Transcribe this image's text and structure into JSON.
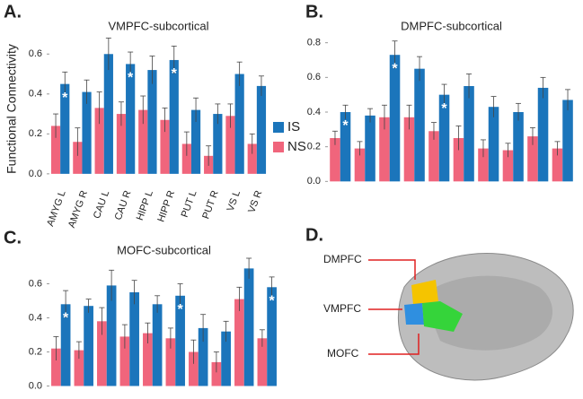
{
  "chart_data": [
    {
      "type": "bar",
      "panel": "A.",
      "title": "VMPFC-subcortical",
      "y_label": "Functional Connectivity",
      "categories": [
        "AMYG L",
        "AMYG R",
        "CAU L",
        "CAU R",
        "HIPP L",
        "HIPP R",
        "PUT L",
        "PUT R",
        "VS L",
        "VS R"
      ],
      "series": [
        {
          "name": "NS",
          "color": "#f0657c",
          "values": [
            0.24,
            0.16,
            0.33,
            0.3,
            0.32,
            0.27,
            0.15,
            0.09,
            0.29,
            0.15
          ],
          "errors": [
            0.06,
            0.07,
            0.08,
            0.06,
            0.07,
            0.06,
            0.06,
            0.05,
            0.06,
            0.05
          ]
        },
        {
          "name": "IS",
          "color": "#1b75bb",
          "values": [
            0.45,
            0.41,
            0.6,
            0.55,
            0.52,
            0.57,
            0.32,
            0.3,
            0.5,
            0.44
          ],
          "errors": [
            0.06,
            0.06,
            0.08,
            0.06,
            0.07,
            0.07,
            0.06,
            0.05,
            0.06,
            0.05
          ]
        }
      ],
      "annotations": [
        {
          "text": "*",
          "category": 0
        },
        {
          "text": "*",
          "category": 3
        },
        {
          "text": "*",
          "category": 5
        }
      ],
      "ylim": [
        -0.05,
        0.7
      ],
      "yticks": [
        {
          "value": 0,
          "label": "0.0"
        },
        0.2,
        0.4,
        0.6
      ],
      "legend": "right"
    },
    {
      "type": "bar",
      "panel": "B.",
      "title": "DMPFC-subcortical",
      "categories": [
        null,
        null,
        null,
        null,
        null,
        null,
        null,
        null,
        null,
        null
      ],
      "series": [
        {
          "name": "NS",
          "color": "#f0657c",
          "values": [
            0.25,
            0.19,
            0.37,
            0.37,
            0.29,
            0.25,
            0.19,
            0.18,
            0.26,
            0.19
          ],
          "errors": [
            0.04,
            0.04,
            0.07,
            0.07,
            0.05,
            0.07,
            0.05,
            0.04,
            0.05,
            0.04
          ]
        },
        {
          "name": "IS",
          "color": "#1b75bb",
          "values": [
            0.4,
            0.38,
            0.73,
            0.65,
            0.5,
            0.55,
            0.43,
            0.4,
            0.54,
            0.47
          ],
          "errors": [
            0.04,
            0.04,
            0.08,
            0.07,
            0.06,
            0.07,
            0.06,
            0.05,
            0.06,
            0.06
          ]
        }
      ],
      "annotations": [
        {
          "text": "*",
          "category": 0
        },
        {
          "text": "*",
          "category": 2
        },
        {
          "text": "*",
          "category": 4
        }
      ],
      "ylim": [
        -0.05,
        0.85
      ],
      "yticks": [
        {
          "value": 0,
          "label": "0.0"
        },
        0.2,
        0.4,
        0.6,
        0.8
      ]
    },
    {
      "type": "bar",
      "panel": "C.",
      "title": "MOFC-subcortical",
      "categories": [
        null,
        null,
        null,
        null,
        null,
        null,
        null,
        null,
        null,
        null
      ],
      "series": [
        {
          "name": "NS",
          "color": "#f0657c",
          "values": [
            0.22,
            0.21,
            0.38,
            0.29,
            0.31,
            0.28,
            0.2,
            0.14,
            0.51,
            0.28
          ],
          "errors": [
            0.07,
            0.05,
            0.08,
            0.07,
            0.06,
            0.06,
            0.07,
            0.06,
            0.07,
            0.05
          ]
        },
        {
          "name": "IS",
          "color": "#1b75bb",
          "values": [
            0.48,
            0.47,
            0.59,
            0.55,
            0.48,
            0.53,
            0.34,
            0.32,
            0.69,
            0.58
          ],
          "errors": [
            0.08,
            0.04,
            0.09,
            0.07,
            0.05,
            0.07,
            0.08,
            0.06,
            0.06,
            0.06
          ]
        }
      ],
      "annotations": [
        {
          "text": "*",
          "category": 0
        },
        {
          "text": "*",
          "category": 5
        },
        {
          "text": "*",
          "category": 9
        }
      ],
      "ylim": [
        -0.05,
        0.75
      ],
      "yticks": [
        {
          "value": 0,
          "label": "0.0"
        },
        0.2,
        0.4,
        0.6
      ]
    }
  ],
  "panel_d": {
    "panel": "D.",
    "labels": [
      "DMPFC",
      "VMPFC",
      "MOFC"
    ]
  }
}
